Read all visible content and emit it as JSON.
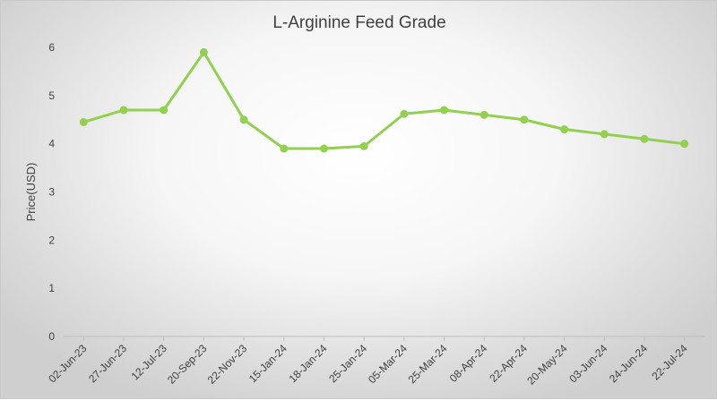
{
  "chart_data": {
    "type": "line",
    "title": "L-Arginine Feed Grade",
    "xlabel": "",
    "ylabel": "Price(USD)",
    "ylim": [
      0,
      6
    ],
    "yticks": [
      0,
      1,
      2,
      3,
      4,
      5,
      6
    ],
    "grid": false,
    "legend": "none",
    "categories": [
      "02-Jun-23",
      "27-Jun-23",
      "12-Jul-23",
      "20-Sep-23",
      "22-Nov-23",
      "15-Jan-24",
      "18-Jan-24",
      "25-Jan-24",
      "05-Mar-24",
      "25-Mar-24",
      "08-Apr-24",
      "22-Apr-24",
      "20-May-24",
      "03-Jun-24",
      "24-Jun-24",
      "22-Jul-24"
    ],
    "series": [
      {
        "values": [
          4.45,
          4.7,
          4.7,
          5.9,
          4.5,
          3.9,
          3.9,
          3.95,
          4.62,
          4.7,
          4.6,
          4.5,
          4.3,
          4.2,
          4.1,
          4.0
        ],
        "color": "#92d050"
      }
    ]
  }
}
